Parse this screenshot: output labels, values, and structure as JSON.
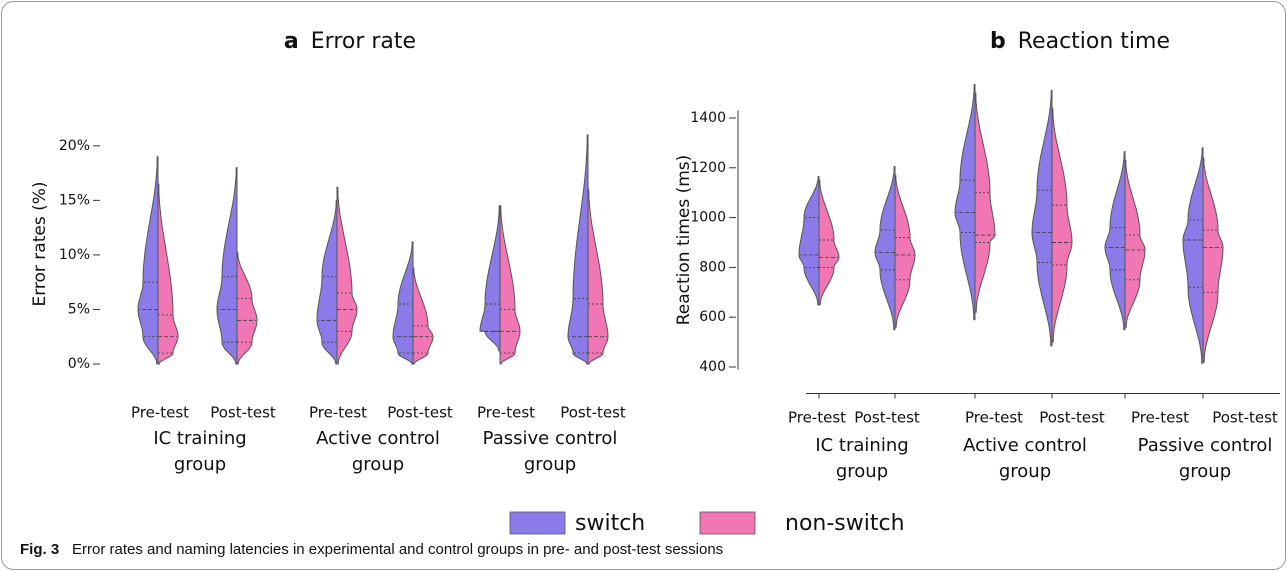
{
  "chart_data": [
    {
      "type": "violin",
      "panel_label": "a",
      "title": "Error rate",
      "ylabel": "Error rates  (%)",
      "ylim": [
        0,
        22
      ],
      "yticks": [
        {
          "value": 0,
          "label": "0%"
        },
        {
          "value": 5,
          "label": "5%"
        },
        {
          "value": 10,
          "label": "10%"
        },
        {
          "value": 15,
          "label": "15%"
        },
        {
          "value": 20,
          "label": "20%"
        }
      ],
      "axis_lines": false,
      "categories": [
        "Pre-test",
        "Post-test",
        "Pre-test",
        "Post-test",
        "Pre-test",
        "Post-test"
      ],
      "groups": [
        [
          "IC training",
          "group"
        ],
        [
          "Active control",
          "group"
        ],
        [
          "Passive control",
          "group"
        ]
      ],
      "series": [
        {
          "min": [
            0,
            0,
            0,
            0,
            1.2,
            0
          ],
          "q1": [
            2.5,
            2,
            2,
            1,
            3,
            1
          ],
          "median": [
            5,
            5,
            4,
            2.5,
            3,
            2.5
          ],
          "q3": [
            7.5,
            8,
            8,
            5.5,
            5.5,
            6
          ],
          "max": [
            19,
            18,
            15,
            11.2,
            14.5,
            21
          ]
        },
        {
          "min": [
            0,
            0,
            0,
            0,
            0,
            0
          ],
          "q1": [
            1,
            2,
            3,
            1,
            1,
            1
          ],
          "median": [
            2.5,
            4,
            5,
            2.5,
            3,
            2.5
          ],
          "q3": [
            4.5,
            6,
            6.5,
            3.5,
            5,
            5.5
          ],
          "max": [
            16.5,
            10.2,
            16.2,
            8.8,
            14.5,
            16
          ]
        }
      ]
    },
    {
      "type": "violin",
      "panel_label": "b",
      "title": "Reaction time",
      "ylabel": "Reaction times (ms)",
      "ylim": [
        390,
        1430
      ],
      "yticks": [
        400,
        600,
        800,
        1000,
        1200,
        1400
      ],
      "axis_lines": true,
      "categories": [
        "Pre-test",
        "Post-test",
        "Pre-test",
        "Post-test",
        "Pre-test",
        "Post-test"
      ],
      "groups": [
        [
          "IC training",
          "group"
        ],
        [
          "Active control",
          "group"
        ],
        [
          "Passive control",
          "group"
        ]
      ],
      "series": [
        {
          "min": [
            650,
            550,
            590,
            485,
            550,
            415
          ],
          "q1": [
            800,
            790,
            940,
            820,
            790,
            720
          ],
          "median": [
            850,
            860,
            1020,
            940,
            880,
            910
          ],
          "q3": [
            1000,
            950,
            1150,
            1110,
            960,
            990
          ],
          "max": [
            1165,
            1205,
            1535,
            1510,
            1265,
            1280
          ]
        },
        {
          "min": [
            650,
            560,
            620,
            500,
            560,
            420
          ],
          "q1": [
            800,
            750,
            900,
            810,
            750,
            700
          ],
          "median": [
            840,
            850,
            930,
            900,
            870,
            880
          ],
          "q3": [
            910,
            920,
            1100,
            1050,
            930,
            950
          ],
          "max": [
            1150,
            1170,
            1500,
            1440,
            1230,
            1240
          ]
        }
      ]
    }
  ],
  "legend": [
    {
      "name": "switch",
      "color": "#8b7be8"
    },
    {
      "name": "non-switch",
      "color": "#f077b4"
    }
  ],
  "caption": {
    "label": "Fig. 3",
    "text": "Error rates and naming latencies in experimental and control groups in pre- and post-test sessions"
  }
}
